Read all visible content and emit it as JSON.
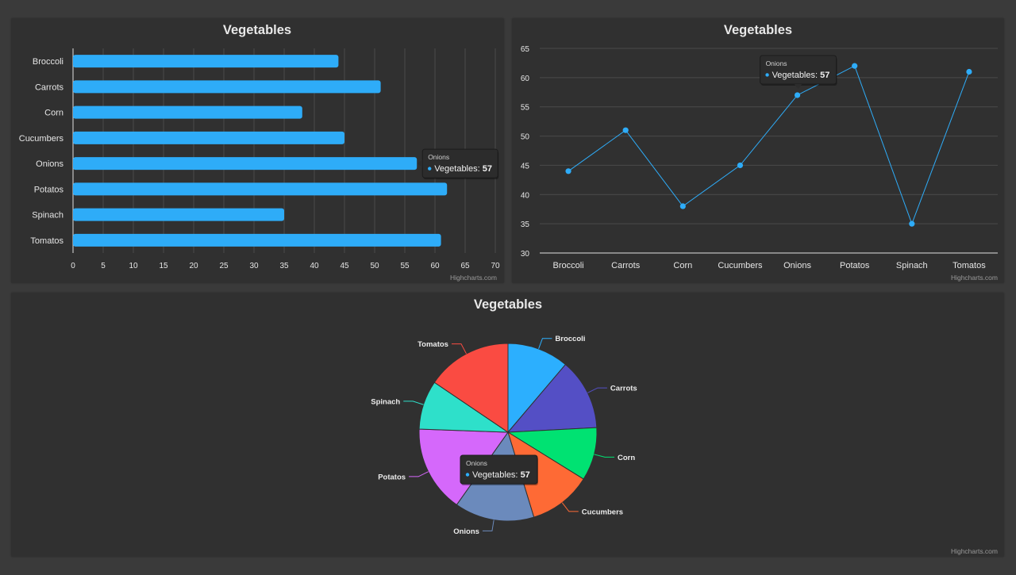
{
  "chart_data": [
    {
      "type": "bar",
      "title": "Vegetables",
      "categories": [
        "Broccoli",
        "Carrots",
        "Corn",
        "Cucumbers",
        "Onions",
        "Potatos",
        "Spinach",
        "Tomatos"
      ],
      "series": [
        {
          "name": "Vegetables",
          "values": [
            44,
            51,
            38,
            45,
            57,
            62,
            35,
            61
          ]
        }
      ],
      "xlim": [
        0,
        70
      ],
      "ticks": [
        0,
        5,
        10,
        15,
        20,
        25,
        30,
        35,
        40,
        45,
        50,
        55,
        60,
        65,
        70
      ],
      "orientation": "horizontal",
      "grid": true,
      "color": "#2eacf8",
      "credit": "Highcharts.com",
      "tooltip": {
        "category": "Onions",
        "series": "Vegetables",
        "value": 57
      }
    },
    {
      "type": "line",
      "title": "Vegetables",
      "categories": [
        "Broccoli",
        "Carrots",
        "Corn",
        "Cucumbers",
        "Onions",
        "Potatos",
        "Spinach",
        "Tomatos"
      ],
      "series": [
        {
          "name": "Vegetables",
          "values": [
            44,
            51,
            38,
            45,
            57,
            62,
            35,
            61
          ]
        }
      ],
      "ylim": [
        30,
        65
      ],
      "ticks": [
        30,
        35,
        40,
        45,
        50,
        55,
        60,
        65
      ],
      "grid": true,
      "color": "#2eacf8",
      "credit": "Highcharts.com",
      "tooltip": {
        "category": "Onions",
        "series": "Vegetables",
        "value": 57
      }
    },
    {
      "type": "pie",
      "title": "Vegetables",
      "categories": [
        "Broccoli",
        "Carrots",
        "Corn",
        "Cucumbers",
        "Onions",
        "Potatos",
        "Spinach",
        "Tomatos"
      ],
      "series": [
        {
          "name": "Vegetables",
          "values": [
            44,
            51,
            38,
            45,
            57,
            62,
            35,
            61
          ]
        }
      ],
      "colors": [
        "#2caffe",
        "#544fc5",
        "#00e272",
        "#fe6a35",
        "#6b8abc",
        "#d568fb",
        "#2ee0ca",
        "#fa4b42"
      ],
      "credit": "Highcharts.com",
      "tooltip": {
        "category": "Onions",
        "series": "Vegetables",
        "value": 57
      }
    }
  ]
}
